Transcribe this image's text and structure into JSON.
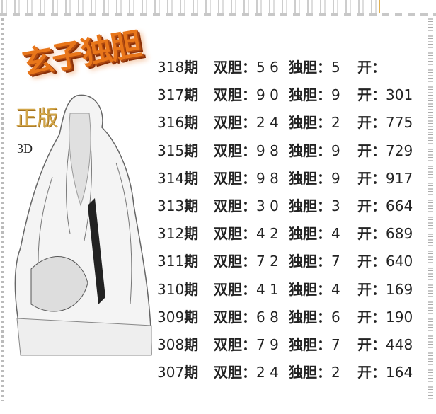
{
  "header": {
    "title": "玄子独胆",
    "edition": "正版",
    "game": "3D"
  },
  "labels": {
    "period_suffix": "期",
    "pair": "双胆：",
    "single": "独胆：",
    "open": "开："
  },
  "rows": [
    {
      "period": "318",
      "pair": "5 6",
      "single": "5",
      "open": ""
    },
    {
      "period": "317",
      "pair": "9 0",
      "single": "9",
      "open": "301"
    },
    {
      "period": "316",
      "pair": "2 4",
      "single": "2",
      "open": "775"
    },
    {
      "period": "315",
      "pair": "9 8",
      "single": "9",
      "open": "729"
    },
    {
      "period": "314",
      "pair": "9 8",
      "single": "9",
      "open": "917"
    },
    {
      "period": "313",
      "pair": "3 0",
      "single": "3",
      "open": "664"
    },
    {
      "period": "312",
      "pair": "4 2",
      "single": "4",
      "open": "689"
    },
    {
      "period": "311",
      "pair": "7 2",
      "single": "7",
      "open": "640"
    },
    {
      "period": "310",
      "pair": "4 1",
      "single": "4",
      "open": "169"
    },
    {
      "period": "309",
      "pair": "6 8",
      "single": "6",
      "open": "190"
    },
    {
      "period": "308",
      "pair": "7 9",
      "single": "7",
      "open": "448"
    },
    {
      "period": "307",
      "pair": "2 4",
      "single": "2",
      "open": "164"
    }
  ],
  "colors": {
    "title": "#e8761a",
    "edition": "#d2a64a",
    "text": "#222222"
  }
}
